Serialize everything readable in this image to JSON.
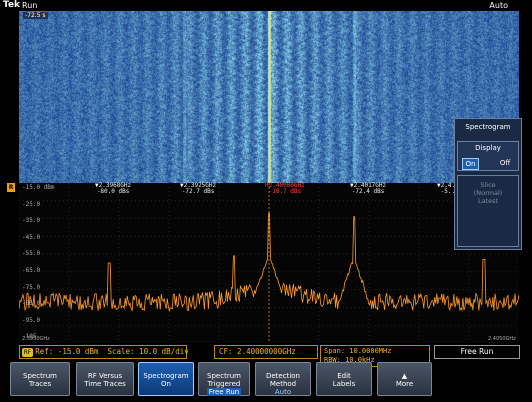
{
  "header": {
    "logo": "Tek",
    "run": "Run",
    "mode": "Auto",
    "spec_value": "-72.5 s"
  },
  "chart_data": {
    "type": "line",
    "ylabels": [
      "-15.0 dBm",
      "-25.0",
      "-35.0",
      "-45.0",
      "-55.0",
      "-65.0",
      "-75.0",
      "-85.0",
      "-95.0",
      "-105"
    ],
    "ylim": [
      -105,
      -15
    ],
    "xlim": [
      2.395,
      2.405
    ],
    "x_start_label": "2.3950GHz",
    "x_stop_label": "2.4050GHz",
    "peaks": [
      {
        "x": 2.3968,
        "y": -60
      },
      {
        "x": 2.3993,
        "y": -56
      },
      {
        "x": 2.4,
        "y": -32
      },
      {
        "x": 2.4017,
        "y": -34
      },
      {
        "x": 2.4043,
        "y": -58
      }
    ],
    "noise_floor": -82,
    "markers": [
      {
        "freq": "2.3968GHz",
        "level": "-80.0 dBs"
      },
      {
        "freq": "2.3925GHz",
        "level": "-72.7 dBs"
      },
      {
        "freq": "2.40000GHz",
        "level": "-18.7 dBs"
      },
      {
        "freq": "2.4017GHz",
        "level": "-72.4 dBs"
      },
      {
        "freq": "2.4...",
        "level": "-5..."
      }
    ],
    "reference_marker": "R"
  },
  "side_menu": {
    "title": "Spectrogram",
    "display_label": "Display",
    "on": "On",
    "off": "Off",
    "slice_lines": [
      "Slice",
      "(Normal)",
      "Latest"
    ]
  },
  "status": {
    "ref_badge": "RF",
    "ref": "Ref: -15.0 dBm",
    "scale": "Scale: 10.0 dB/div",
    "cf": "CF: 2.40000000GHz",
    "span": "Span:  10.0000MHz",
    "rbw": "RBW:   10.0kHz",
    "free_run": "Free Run"
  },
  "buttons": [
    {
      "l1": "Spectrum",
      "l2": "Traces",
      "sub": ""
    },
    {
      "l1": "RF Versus",
      "l2": "Time Traces",
      "sub": ""
    },
    {
      "l1": "Spectrogram",
      "l2": "",
      "sub": "On"
    },
    {
      "l1": "Spectrum",
      "l2": "Triggered",
      "sub": "Free Run"
    },
    {
      "l1": "Detection",
      "l2": "Method",
      "sub": "Auto"
    },
    {
      "l1": "Edit",
      "l2": "Labels",
      "sub": ""
    },
    {
      "l1": "▲",
      "l2": "More",
      "sub": ""
    }
  ],
  "colors": {
    "trace": "#ff9a2a",
    "accent": "#1e5fb0",
    "status": "#e8b830"
  }
}
